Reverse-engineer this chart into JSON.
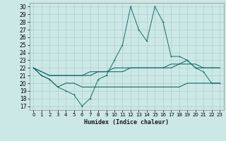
{
  "title": "",
  "xlabel": "Humidex (Indice chaleur)",
  "xlim": [
    -0.5,
    23.5
  ],
  "ylim": [
    16.5,
    30.5
  ],
  "yticks": [
    17,
    18,
    19,
    20,
    21,
    22,
    23,
    24,
    25,
    26,
    27,
    28,
    29,
    30
  ],
  "xticks": [
    0,
    1,
    2,
    3,
    4,
    5,
    6,
    7,
    8,
    9,
    10,
    11,
    12,
    13,
    14,
    15,
    16,
    17,
    18,
    19,
    20,
    21,
    22,
    23
  ],
  "bg_color": "#cce8e6",
  "grid_color": "#aad0ce",
  "line_color": "#1a6b6a",
  "line1_y": [
    22,
    21,
    20.5,
    19.5,
    19,
    18.5,
    17,
    18,
    20.5,
    21,
    23,
    25,
    30,
    27,
    25.5,
    30,
    28,
    23.5,
    23.5,
    23,
    22,
    21.5,
    20,
    20
  ],
  "line2_y": [
    22,
    21.5,
    21,
    21,
    21,
    21,
    21,
    21,
    21.5,
    21.5,
    21.5,
    21.5,
    22,
    22,
    22,
    22,
    22,
    22.5,
    22.5,
    23,
    22,
    22,
    22,
    22
  ],
  "line3_y": [
    22,
    21.5,
    21,
    21,
    21,
    21,
    21,
    21.5,
    21.5,
    21.5,
    22,
    22,
    22,
    22,
    22,
    22,
    22,
    22,
    22.5,
    22.5,
    22.5,
    22,
    22,
    22
  ],
  "line4_y": [
    22,
    21,
    20.5,
    19.5,
    20,
    20,
    19.5,
    19.5,
    19.5,
    19.5,
    19.5,
    19.5,
    19.5,
    19.5,
    19.5,
    19.5,
    19.5,
    19.5,
    19.5,
    20,
    20,
    20,
    20,
    20
  ]
}
